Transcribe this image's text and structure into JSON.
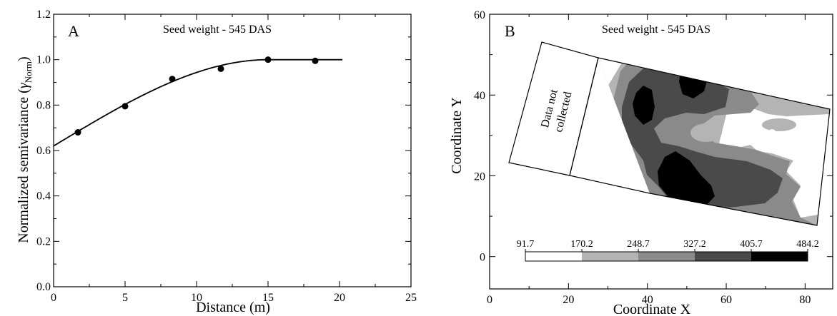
{
  "chart_data": [
    {
      "type": "scatter",
      "panel_label": "A",
      "title": "Seed weight - 545 DAS",
      "xlabel": "Distance (m)",
      "ylabel_main": "Normalized semivariance (",
      "ylabel_gamma": "γ",
      "ylabel_sub": "Norm",
      "ylabel_close": ")",
      "xlim": [
        0,
        25
      ],
      "ylim": [
        0.0,
        1.2
      ],
      "xticks": [
        0,
        5,
        10,
        15,
        20,
        25
      ],
      "xtick_labels": [
        "0",
        "5",
        "10",
        "15",
        "20",
        "25"
      ],
      "yticks": [
        0.0,
        0.2,
        0.4,
        0.6,
        0.8,
        1.0,
        1.2
      ],
      "ytick_labels": [
        "0.0",
        "0.2",
        "0.4",
        "0.6",
        "0.8",
        "1.0",
        "1.2"
      ],
      "grid": false,
      "series": [
        {
          "x": [
            1.7,
            5.0,
            8.3,
            11.7,
            15.0,
            18.3
          ],
          "y": [
            0.68,
            0.795,
            0.915,
            0.96,
            1.0,
            0.995
          ]
        }
      ],
      "fitted_curve": {
        "model": "spherical",
        "nugget": 0.62,
        "sill": 1.0,
        "range": 15.0,
        "x_max": 20.2
      }
    },
    {
      "type": "heatmap",
      "panel_label": "B",
      "title": "Seed weight - 545 DAS",
      "xlabel": "Coordinate X",
      "ylabel": "Coordinate Y",
      "xlim": [
        0,
        87
      ],
      "ylim": [
        -8,
        60
      ],
      "xticks": [
        0,
        20,
        40,
        60,
        80
      ],
      "xtick_labels": [
        "0",
        "20",
        "40",
        "60",
        "80"
      ],
      "yticks": [
        0,
        20,
        40,
        60
      ],
      "ytick_labels": [
        "0",
        "20",
        "40",
        "60"
      ],
      "grid": false,
      "annotation_line1": "Data not",
      "annotation_line2": "collected",
      "legend": {
        "breaks": [
          91.7,
          170.2,
          248.7,
          327.2,
          405.7,
          484.2
        ],
        "break_labels": [
          "91.7",
          "170.2",
          "248.7",
          "327.2",
          "405.7",
          "484.2"
        ],
        "colors": [
          "#ffffff",
          "#b4b4b4",
          "#8a8a8a",
          "#4a4a4a",
          "#000000"
        ]
      }
    }
  ]
}
